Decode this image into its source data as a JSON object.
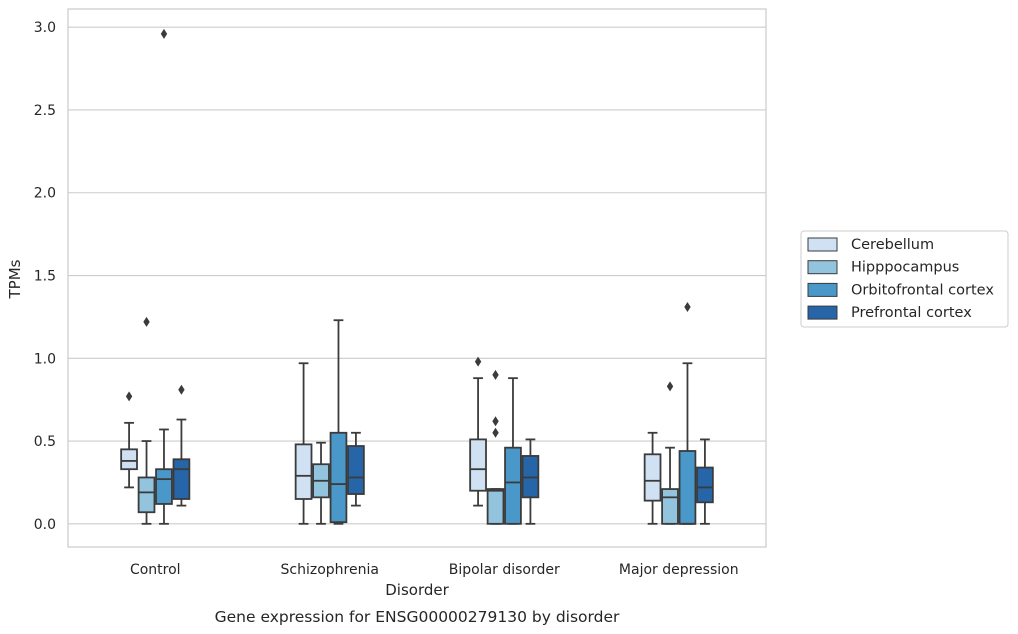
{
  "chart_data": {
    "type": "box",
    "caption": "Gene expression for ENSG00000279130 by disorder",
    "xlabel": "Disorder",
    "ylabel": "TPMs",
    "ylim": [
      -0.14,
      3.11
    ],
    "yticks": [
      0.0,
      0.5,
      1.0,
      1.5,
      2.0,
      2.5,
      3.0
    ],
    "ytick_labels": [
      "0.0",
      "0.5",
      "1.0",
      "1.5",
      "2.0",
      "2.5",
      "3.0"
    ],
    "grid": "horizontal",
    "legend_position": "right",
    "categories": [
      "Control",
      "Schizophrenia",
      "Bipolar disorder",
      "Major depression"
    ],
    "series": [
      {
        "name": "Cerebellum",
        "color": "#cfe1f2",
        "boxes": [
          {
            "whislo": 0.22,
            "q1": 0.33,
            "med": 0.38,
            "q3": 0.45,
            "whishi": 0.61,
            "fliers": [
              0.77
            ]
          },
          {
            "whislo": 0.0,
            "q1": 0.15,
            "med": 0.29,
            "q3": 0.48,
            "whishi": 0.97,
            "fliers": []
          },
          {
            "whislo": 0.11,
            "q1": 0.2,
            "med": 0.33,
            "q3": 0.51,
            "whishi": 0.88,
            "fliers": [
              0.98
            ]
          },
          {
            "whislo": 0.0,
            "q1": 0.14,
            "med": 0.26,
            "q3": 0.42,
            "whishi": 0.55,
            "fliers": []
          }
        ]
      },
      {
        "name": "Hipppocampus",
        "color": "#93c4de",
        "boxes": [
          {
            "whislo": 0.0,
            "q1": 0.07,
            "med": 0.19,
            "q3": 0.28,
            "whishi": 0.5,
            "fliers": [
              1.22
            ]
          },
          {
            "whislo": 0.0,
            "q1": 0.16,
            "med": 0.26,
            "q3": 0.36,
            "whishi": 0.49,
            "fliers": []
          },
          {
            "whislo": 0.0,
            "q1": 0.0,
            "med": 0.2,
            "q3": 0.21,
            "whishi": 0.21,
            "fliers": [
              0.55,
              0.62,
              0.9
            ]
          },
          {
            "whislo": 0.0,
            "q1": 0.0,
            "med": 0.16,
            "q3": 0.21,
            "whishi": 0.46,
            "fliers": [
              0.83
            ]
          }
        ]
      },
      {
        "name": "Orbitofrontal cortex",
        "color": "#4a98c9",
        "boxes": [
          {
            "whislo": 0.0,
            "q1": 0.12,
            "med": 0.27,
            "q3": 0.33,
            "whishi": 0.57,
            "fliers": [
              2.96
            ]
          },
          {
            "whislo": 0.0,
            "q1": 0.01,
            "med": 0.24,
            "q3": 0.55,
            "whishi": 1.23,
            "fliers": []
          },
          {
            "whislo": 0.0,
            "q1": 0.0,
            "med": 0.25,
            "q3": 0.46,
            "whishi": 0.88,
            "fliers": []
          },
          {
            "whislo": 0.0,
            "q1": 0.0,
            "med": 0.0,
            "q3": 0.44,
            "whishi": 0.97,
            "fliers": [
              1.31
            ]
          }
        ]
      },
      {
        "name": "Prefrontal cortex",
        "color": "#2666a8",
        "boxes": [
          {
            "whislo": 0.11,
            "q1": 0.15,
            "med": 0.33,
            "q3": 0.39,
            "whishi": 0.63,
            "fliers": [
              0.81
            ]
          },
          {
            "whislo": 0.11,
            "q1": 0.18,
            "med": 0.28,
            "q3": 0.47,
            "whishi": 0.55,
            "fliers": []
          },
          {
            "whislo": 0.0,
            "q1": 0.16,
            "med": 0.28,
            "q3": 0.41,
            "whishi": 0.51,
            "fliers": []
          },
          {
            "whislo": 0.0,
            "q1": 0.13,
            "med": 0.22,
            "q3": 0.34,
            "whishi": 0.51,
            "fliers": []
          }
        ]
      }
    ]
  }
}
